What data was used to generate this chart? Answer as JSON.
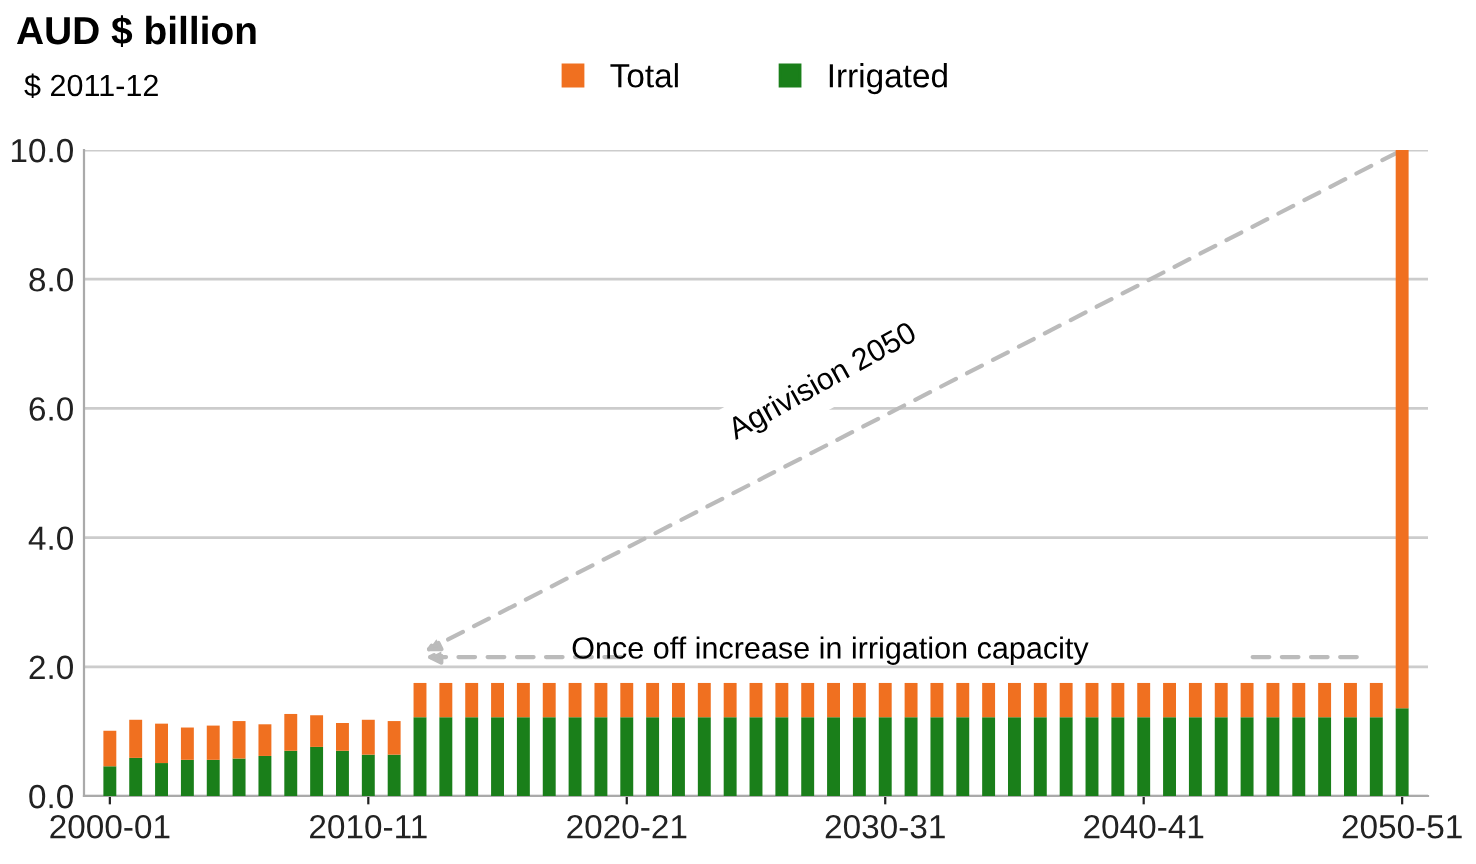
{
  "chart_data": {
    "type": "bar",
    "stacked": true,
    "title": "AUD $ billion",
    "subtitle": "$ 2011-12",
    "categories": [
      "2000-01",
      null,
      null,
      null,
      null,
      null,
      null,
      null,
      null,
      null,
      "2010-11",
      null,
      null,
      null,
      null,
      null,
      null,
      null,
      null,
      null,
      "2020-21",
      null,
      null,
      null,
      null,
      null,
      null,
      null,
      null,
      null,
      "2030-31",
      null,
      null,
      null,
      null,
      null,
      null,
      null,
      null,
      null,
      "2040-41",
      null,
      null,
      null,
      null,
      null,
      null,
      null,
      null,
      null,
      "2050-51"
    ],
    "series": [
      {
        "name": "Irrigated",
        "color": "#1a7f1a",
        "values": [
          0.46,
          0.59,
          0.51,
          0.56,
          0.56,
          0.58,
          0.62,
          0.7,
          0.76,
          0.7,
          0.64,
          0.64,
          1.22,
          1.22,
          1.22,
          1.22,
          1.22,
          1.22,
          1.22,
          1.22,
          1.22,
          1.22,
          1.22,
          1.22,
          1.22,
          1.22,
          1.22,
          1.22,
          1.22,
          1.22,
          1.22,
          1.22,
          1.22,
          1.22,
          1.22,
          1.22,
          1.22,
          1.22,
          1.22,
          1.22,
          1.22,
          1.22,
          1.22,
          1.22,
          1.22,
          1.22,
          1.22,
          1.22,
          1.22,
          1.22,
          1.36
        ]
      },
      {
        "name": "Total",
        "color": "#f07020",
        "values": [
          0.55,
          0.59,
          0.61,
          0.5,
          0.53,
          0.58,
          0.49,
          0.57,
          0.49,
          0.43,
          0.54,
          0.52,
          0.53,
          0.53,
          0.53,
          0.53,
          0.53,
          0.53,
          0.53,
          0.53,
          0.53,
          0.53,
          0.53,
          0.53,
          0.53,
          0.53,
          0.53,
          0.53,
          0.53,
          0.53,
          0.53,
          0.53,
          0.53,
          0.53,
          0.53,
          0.53,
          0.53,
          0.53,
          0.53,
          0.53,
          0.53,
          0.53,
          0.53,
          0.53,
          0.53,
          0.53,
          0.53,
          0.53,
          0.53,
          0.53,
          8.64
        ]
      }
    ],
    "ylim": [
      0,
      10
    ],
    "yticks": [
      {
        "value": 0,
        "label": "0.0"
      },
      {
        "value": 2,
        "label": "2.0"
      },
      {
        "value": 4,
        "label": "4.0"
      },
      {
        "value": 6,
        "label": "6.0"
      },
      {
        "value": 8,
        "label": "8.0"
      },
      {
        "value": 10,
        "label": "10.0"
      }
    ],
    "grid": "y",
    "legend": "top",
    "annotations": [
      "Agrivision 2050",
      "Once off increase in irrigation capacity"
    ]
  }
}
